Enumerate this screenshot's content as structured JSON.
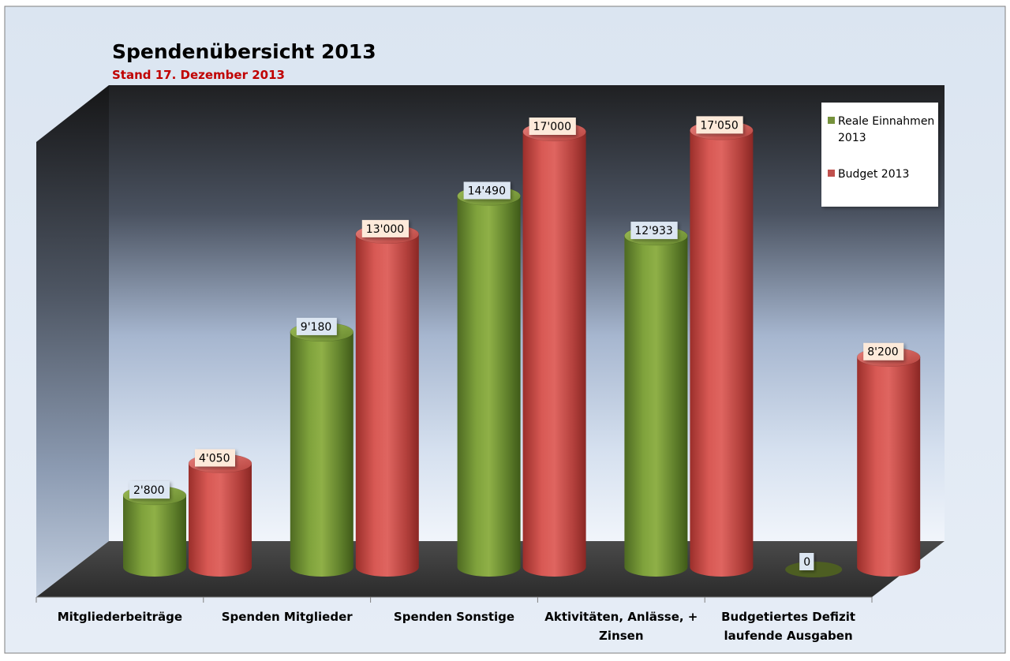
{
  "chart_data": {
    "type": "bar",
    "style": "3d-cylinder",
    "title": "Spendenübersicht 2013",
    "subtitle": "Stand 17. Dezember 2013",
    "categories": [
      [
        "Mitgliederbeiträge"
      ],
      [
        "Spenden Mitglieder"
      ],
      [
        "Spenden Sonstige"
      ],
      [
        "Aktivitäten, Anlässe, +",
        "Zinsen"
      ],
      [
        "Budgetiertes Defizit",
        "laufende Ausgaben"
      ]
    ],
    "series": [
      {
        "name": "Reale Einnahmen 2013",
        "legend_lines": [
          "Reale Einnahmen",
          "2013"
        ],
        "values": [
          2800,
          9180,
          14490,
          12933,
          0
        ],
        "labels": [
          "2'800",
          "9'180",
          "14'490",
          "12'933",
          "0"
        ],
        "color": "#76923C"
      },
      {
        "name": "Budget 2013",
        "legend_lines": [
          "Budget 2013"
        ],
        "values": [
          4050,
          13000,
          17000,
          17050,
          8200
        ],
        "labels": [
          "4'050",
          "13'000",
          "17'000",
          "17'050",
          "8'200"
        ],
        "color": "#C0504D"
      }
    ],
    "ylim": [
      0,
      20000
    ],
    "grid": false,
    "legend": "top-right"
  },
  "colors": {
    "green": "#76923C",
    "red": "#C0504D",
    "subtitle": "#C00000",
    "green_label_bg": "#DCE6F2",
    "red_label_bg": "#FDEADA"
  }
}
